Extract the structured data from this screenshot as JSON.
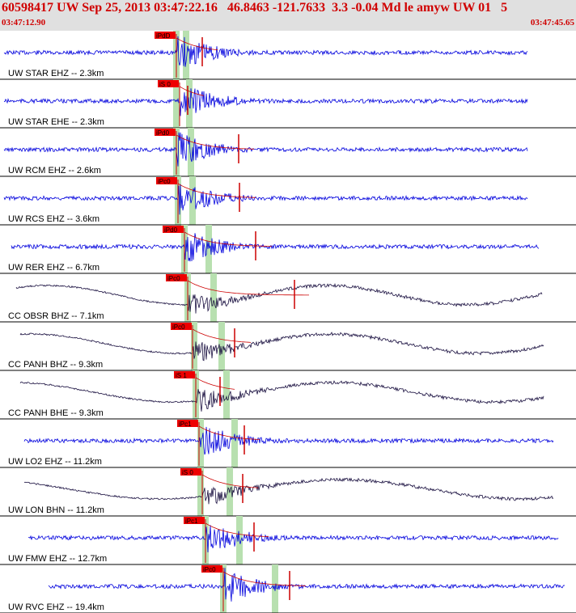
{
  "header": {
    "title": "60598417 UW Sep 25, 2013 03:47:22.16   46.8463 -121.7633  3.3 -0.04 Md le amyw UW 01   5",
    "time_start": "03:47:12.90",
    "time_end": "03:47:45.65"
  },
  "colors": {
    "header_bg": "#e0e0e0",
    "title": "#d00000",
    "trace_short": "#0000dd",
    "trace_broadband": "#1a1040",
    "pick_box": "#ee0000",
    "window": "#b8e0b0",
    "fit": "#cc0000"
  },
  "chart_data": {
    "type": "line",
    "title": "60598417 UW Sep 25, 2013 03:47:22.16   46.8463 -121.7633  3.3 -0.04 Md le amyw UW 01   5",
    "xlabel": "",
    "ylabel": "",
    "xlim": [
      "03:47:12.90",
      "03:47:45.65"
    ],
    "grid": false,
    "series": [
      {
        "name": "UW STAR EHZ -- 2.3km",
        "pick": "iPdD",
        "kind": "short"
      },
      {
        "name": "UW STAR EHE -- 2.3km",
        "pick": "iS 0",
        "kind": "short"
      },
      {
        "name": "UW RCM EHZ -- 2.6km",
        "pick": "iPd0",
        "kind": "short"
      },
      {
        "name": "UW RCS EHZ -- 3.6km",
        "pick": "iPc0",
        "kind": "short"
      },
      {
        "name": "UW RER EHZ -- 6.7km",
        "pick": "iPd0",
        "kind": "short"
      },
      {
        "name": "CC OBSR BHZ -- 7.1km",
        "pick": "iPc0",
        "kind": "broadband"
      },
      {
        "name": "CC PANH BHZ -- 9.3km",
        "pick": "iPc0",
        "kind": "broadband"
      },
      {
        "name": "CC PANH BHE -- 9.3km",
        "pick": "iS 1",
        "kind": "broadband"
      },
      {
        "name": "UW LO2 EHZ -- 11.2km",
        "pick": "iPc1",
        "kind": "short"
      },
      {
        "name": "UW LON BHN -- 11.2km",
        "pick": "iS 0",
        "kind": "broadband"
      },
      {
        "name": "UW FMW EHZ -- 12.7km",
        "pick": "iPc1",
        "kind": "short"
      },
      {
        "name": "UW RVC EHZ -- 19.4km",
        "pick": "iPc0",
        "kind": "short"
      }
    ]
  }
}
